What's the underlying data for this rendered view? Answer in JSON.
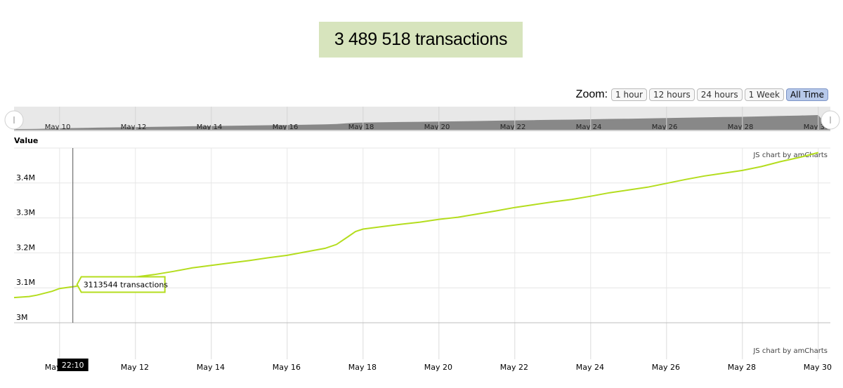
{
  "headline": "3 489 518 transactions",
  "zoom": {
    "label": "Zoom:",
    "buttons": [
      "1 hour",
      "12 hours",
      "24 hours",
      "1 Week",
      "All Time"
    ],
    "active": "All Time"
  },
  "credit": "JS chart by amCharts",
  "cursor": {
    "time_label": "22:10",
    "balloon_text": "3113544 transactions",
    "x": 10.35,
    "y": 3113544
  },
  "colors": {
    "line": "#b4dd1e",
    "headline_bg": "#d7e4bd",
    "scrollbar_fill": "#888888",
    "grid": "#e6e6e6"
  },
  "chart_data": {
    "type": "line",
    "title": "3 489 518 transactions",
    "ylabel": "Value",
    "xlabel": "",
    "x_tick_labels": [
      "May 10",
      "May 12",
      "May 14",
      "May 16",
      "May 18",
      "May 20",
      "May 22",
      "May 24",
      "May 26",
      "May 28",
      "May 30"
    ],
    "x_tick_values": [
      10,
      12,
      14,
      16,
      18,
      20,
      22,
      24,
      26,
      28,
      30
    ],
    "y_tick_labels": [
      "3M",
      "3.1M",
      "3.2M",
      "3.3M",
      "3.4M"
    ],
    "y_tick_values": [
      3000000,
      3100000,
      3200000,
      3300000,
      3400000
    ],
    "xlim": [
      8.8,
      30.0
    ],
    "ylim": [
      3000000,
      3500000
    ],
    "grid": true,
    "series": [
      {
        "x": [
          8.8,
          9.2,
          9.4,
          9.8,
          10.0,
          10.4,
          10.8,
          11.0,
          11.5,
          12.0,
          12.5,
          13.0,
          13.5,
          14.0,
          14.5,
          15.0,
          15.5,
          16.0,
          16.5,
          17.0,
          17.3,
          17.6,
          17.8,
          18.0,
          18.5,
          19.0,
          19.5,
          20.0,
          20.5,
          21.0,
          21.5,
          22.0,
          22.5,
          23.0,
          23.5,
          24.0,
          24.5,
          25.0,
          25.5,
          26.0,
          26.5,
          27.0,
          27.5,
          28.0,
          28.5,
          29.0,
          29.5,
          30.0
        ],
        "y": [
          3072000,
          3075000,
          3079000,
          3090000,
          3098000,
          3104000,
          3111000,
          3115000,
          3124000,
          3131000,
          3138000,
          3147000,
          3157000,
          3164000,
          3171000,
          3178000,
          3186000,
          3193000,
          3203000,
          3213000,
          3224000,
          3246000,
          3261000,
          3268000,
          3275000,
          3282000,
          3288000,
          3296000,
          3302000,
          3311000,
          3320000,
          3330000,
          3338000,
          3346000,
          3353000,
          3362000,
          3372000,
          3380000,
          3388000,
          3399000,
          3410000,
          3420000,
          3428000,
          3436000,
          3447000,
          3461000,
          3473000,
          3487000
        ]
      }
    ]
  }
}
